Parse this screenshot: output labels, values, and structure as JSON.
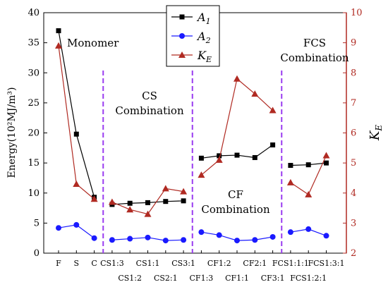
{
  "chart_data": {
    "type": "line",
    "x_tick_labels": [
      "F",
      "S",
      "C",
      "CS1:3",
      "CS1:2",
      "CS1:1",
      "CS2:1",
      "CS3:1",
      "CF1:3",
      "CF1:2",
      "CF1:1",
      "CF2:1",
      "CF3:1",
      "FCS1:1:1",
      "FCS1:2:1",
      "FCS1:3:1"
    ],
    "ylabel": "Energy(10²MJ/m³)",
    "ylabel_right": "K_E",
    "ylim": [
      0,
      40
    ],
    "ylim_right": [
      2,
      10
    ],
    "y_ticks": [
      0,
      5,
      10,
      15,
      20,
      25,
      30,
      35,
      40
    ],
    "y_ticks_right": [
      2,
      3,
      4,
      5,
      6,
      7,
      8,
      9,
      10
    ],
    "grid": false,
    "legend_position": "top-center",
    "series": [
      {
        "name": "A₁",
        "name_base": "A",
        "name_sub": "1",
        "axis": "left",
        "marker": "square",
        "color": "#000000",
        "segments": [
          [
            0,
            1,
            2
          ],
          [
            3,
            4,
            5,
            6,
            7
          ],
          [
            8,
            9,
            10,
            11,
            12
          ],
          [
            13,
            14,
            15
          ]
        ],
        "values": [
          37.0,
          19.8,
          9.3,
          8.1,
          8.3,
          8.4,
          8.6,
          8.7,
          15.8,
          16.2,
          16.3,
          15.9,
          18.0,
          14.6,
          14.7,
          15.0
        ]
      },
      {
        "name": "A₂",
        "name_base": "A",
        "name_sub": "2",
        "axis": "left",
        "marker": "circle",
        "color": "#1a1aff",
        "segments": [
          [
            0,
            1,
            2
          ],
          [
            3,
            4,
            5,
            6,
            7
          ],
          [
            8,
            9,
            10,
            11,
            12
          ],
          [
            13,
            14,
            15
          ]
        ],
        "values": [
          4.2,
          4.7,
          2.5,
          2.2,
          2.4,
          2.6,
          2.1,
          2.2,
          3.5,
          3.0,
          2.1,
          2.2,
          2.7,
          3.5,
          4.0,
          2.9
        ]
      },
      {
        "name": "K_E",
        "name_base": "K",
        "name_sub": "E",
        "axis": "right",
        "marker": "triangle",
        "color": "#b02a22",
        "segments": [
          [
            0,
            1,
            2
          ],
          [
            3,
            4,
            5,
            6,
            7
          ],
          [
            8,
            9,
            10,
            11,
            12
          ],
          [
            13,
            14,
            15
          ]
        ],
        "values": [
          8.9,
          4.3,
          3.8,
          3.7,
          3.45,
          3.3,
          4.15,
          4.05,
          4.6,
          5.1,
          7.8,
          7.3,
          6.75,
          4.35,
          3.95,
          5.25
        ]
      }
    ],
    "dividers_after_index": [
      2,
      7,
      12
    ],
    "annotations": [
      "Monomer",
      "CS",
      "Combination",
      "CF",
      "Combination",
      "FCS",
      "Combination"
    ]
  },
  "colors": {
    "left_axis": "#000000",
    "right_axis": "#b02a22",
    "divider": "#9a3cf0"
  }
}
